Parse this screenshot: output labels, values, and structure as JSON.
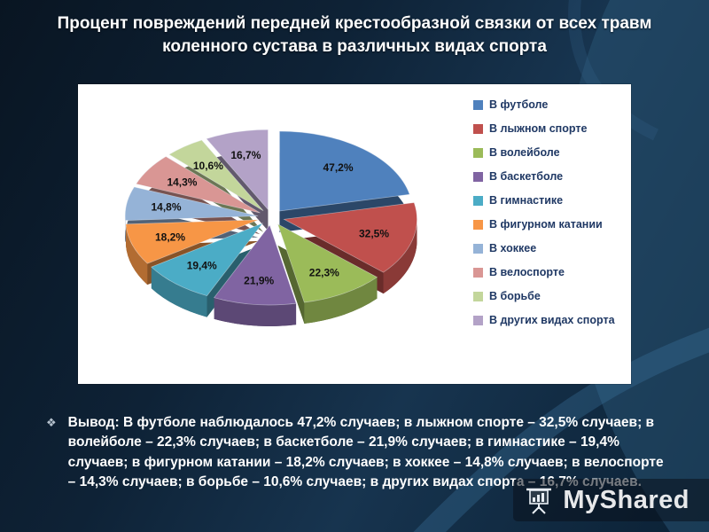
{
  "slide": {
    "title": "Процент повреждений передней крестообразной связки от всех травм коленного сустава в различных видах спорта",
    "bullet_glyph": "❖",
    "conclusion": "Вывод: В футболе наблюдалось 47,2% случаев; в лыжном спорте – 32,5% случаев; в волейболе – 22,3% случаев; в баскетболе – 21,9% случаев; в гимнастике – 19,4% случаев; в фигурном катании – 18,2% случаев; в хоккее – 14,8% случаев; в велоспорте – 14,3% случаев; в борьбе – 10,6% случаев; в других видах спорта – 16,7% случаев."
  },
  "watermark": {
    "label": "MyShared",
    "icon": "presentation-screen-icon"
  },
  "chart_data": {
    "type": "pie",
    "style": "3d-exploded",
    "legend_position": "right",
    "categories": [
      "В футболе",
      "В лыжном спорте",
      "В волейболе",
      "В баскетболе",
      "В гимнастике",
      "В фигурном катании",
      "В хоккее",
      "В велоспорте",
      "В борьбе",
      "В других видах спорта"
    ],
    "values": [
      47.2,
      32.5,
      22.3,
      21.9,
      19.4,
      18.2,
      14.8,
      14.3,
      10.6,
      16.7
    ],
    "display_values": [
      "47,2%",
      "32,5%",
      "22,3%",
      "21,9%",
      "19,4%",
      "18,2%",
      "14,8%",
      "14,3%",
      "10,6%",
      "16,7%"
    ],
    "colors": [
      "#4F81BD",
      "#C0504D",
      "#9BBB59",
      "#8064A2",
      "#4BACC6",
      "#F79646",
      "#95B3D7",
      "#D99694",
      "#C3D69B",
      "#B3A2C7"
    ],
    "label_color": "#111111",
    "legend_text_color": "#1F3864"
  }
}
